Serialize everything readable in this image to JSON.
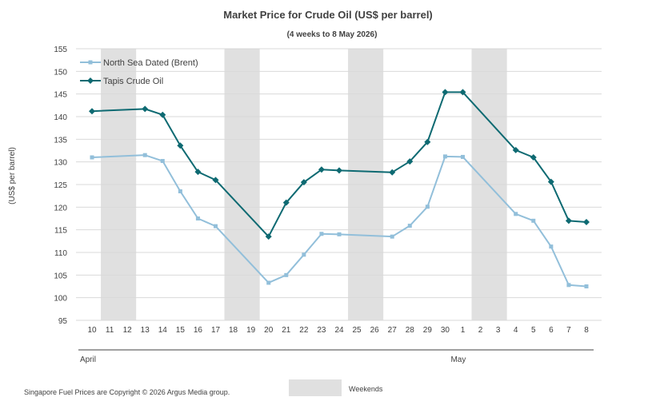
{
  "chart_data": {
    "type": "line",
    "title": "Market Price for Crude  Oil (US$ per barrel)",
    "subtitle": "(4 weeks to 8 May 2026)",
    "ylabel": "(US$ per barrel)",
    "xlabel": "",
    "ylim": [
      95,
      155
    ],
    "yticks": [
      95,
      100,
      105,
      110,
      115,
      120,
      125,
      130,
      135,
      140,
      145,
      150,
      155
    ],
    "grid": true,
    "legend_position": "top-left",
    "categories": [
      "10",
      "11",
      "12",
      "13",
      "14",
      "15",
      "16",
      "17",
      "18",
      "19",
      "20",
      "21",
      "22",
      "23",
      "24",
      "25",
      "26",
      "27",
      "28",
      "29",
      "30",
      "1",
      "2",
      "3",
      "4",
      "5",
      "6",
      "7",
      "8"
    ],
    "month_labels": [
      {
        "label": "April",
        "start": "10",
        "end": "30"
      },
      {
        "label": "May",
        "start": "1",
        "end": "8"
      }
    ],
    "weekends": [
      [
        "11",
        "12"
      ],
      [
        "18",
        "19"
      ],
      [
        "25",
        "26"
      ],
      [
        "2",
        "3"
      ]
    ],
    "weekends_label": "Weekends",
    "series": [
      {
        "name": "North Sea Dated (Brent)",
        "color": "#92BFDA",
        "marker": "square",
        "points": [
          {
            "x": "10",
            "y": 131.0
          },
          {
            "x": "13",
            "y": 131.5
          },
          {
            "x": "14",
            "y": 130.2
          },
          {
            "x": "15",
            "y": 123.5
          },
          {
            "x": "16",
            "y": 117.5
          },
          {
            "x": "17",
            "y": 115.8
          },
          {
            "x": "20",
            "y": 103.3
          },
          {
            "x": "21",
            "y": 105.0
          },
          {
            "x": "22",
            "y": 109.5
          },
          {
            "x": "23",
            "y": 114.1
          },
          {
            "x": "24",
            "y": 114.0
          },
          {
            "x": "27",
            "y": 113.5
          },
          {
            "x": "28",
            "y": 115.9
          },
          {
            "x": "29",
            "y": 120.1
          },
          {
            "x": "30",
            "y": 131.2
          },
          {
            "x": "1",
            "y": 131.1
          },
          {
            "x": "4",
            "y": 118.5
          },
          {
            "x": "5",
            "y": 117.0
          },
          {
            "x": "6",
            "y": 111.3
          },
          {
            "x": "7",
            "y": 102.8
          },
          {
            "x": "8",
            "y": 102.5
          }
        ]
      },
      {
        "name": "Tapis Crude Oil",
        "color": "#0E6A72",
        "marker": "diamond",
        "points": [
          {
            "x": "10",
            "y": 141.2
          },
          {
            "x": "13",
            "y": 141.7
          },
          {
            "x": "14",
            "y": 140.4
          },
          {
            "x": "15",
            "y": 133.6
          },
          {
            "x": "16",
            "y": 127.8
          },
          {
            "x": "17",
            "y": 126.0
          },
          {
            "x": "20",
            "y": 113.5
          },
          {
            "x": "21",
            "y": 121.0
          },
          {
            "x": "22",
            "y": 125.5
          },
          {
            "x": "23",
            "y": 128.3
          },
          {
            "x": "24",
            "y": 128.1
          },
          {
            "x": "27",
            "y": 127.7
          },
          {
            "x": "28",
            "y": 130.1
          },
          {
            "x": "29",
            "y": 134.4
          },
          {
            "x": "30",
            "y": 145.4
          },
          {
            "x": "1",
            "y": 145.4
          },
          {
            "x": "4",
            "y": 132.6
          },
          {
            "x": "5",
            "y": 131.0
          },
          {
            "x": "6",
            "y": 125.6
          },
          {
            "x": "7",
            "y": 117.0
          },
          {
            "x": "8",
            "y": 116.7
          }
        ]
      }
    ]
  },
  "footer": {
    "copyright": "Singapore Fuel Prices are Copyright © 2026 Argus Media group."
  }
}
